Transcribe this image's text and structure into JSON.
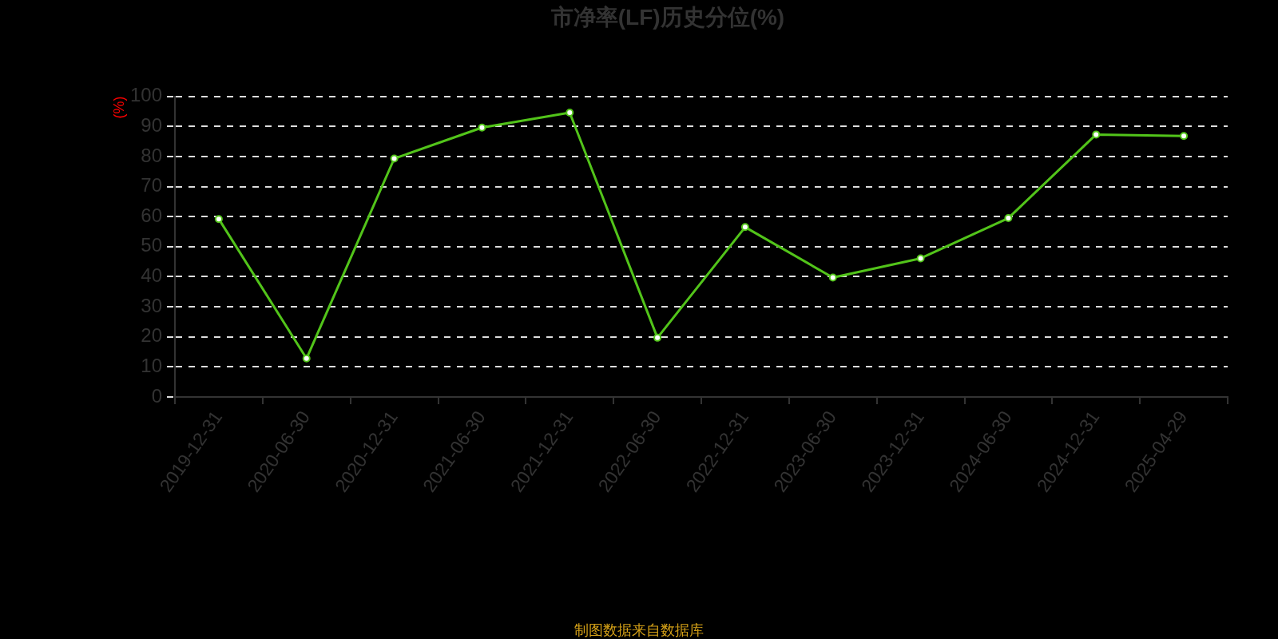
{
  "chart_data": {
    "type": "line",
    "title": "市净率(LF)历史分位(%)",
    "ylabel": "(%)",
    "annotations": [
      "制图数据来自数据库"
    ],
    "categories": [
      "2019-12-31",
      "2020-06-30",
      "2020-12-31",
      "2021-06-30",
      "2021-12-31",
      "2022-06-30",
      "2022-12-31",
      "2023-06-30",
      "2023-12-31",
      "2024-06-30",
      "2024-12-31",
      "2025-04-29"
    ],
    "series": [
      {
        "color": "#52c41a",
        "values": [
          59.2,
          12.8,
          79.3,
          89.6,
          94.6,
          19.7,
          56.5,
          39.7,
          46.1,
          59.5,
          87.3,
          86.8
        ]
      }
    ],
    "ylim": [
      0,
      100
    ],
    "yticks": [
      0,
      10,
      20,
      30,
      40,
      50,
      60,
      70,
      80,
      90,
      100
    ],
    "grid": "y",
    "marker": "circle",
    "line_style": "solid"
  }
}
